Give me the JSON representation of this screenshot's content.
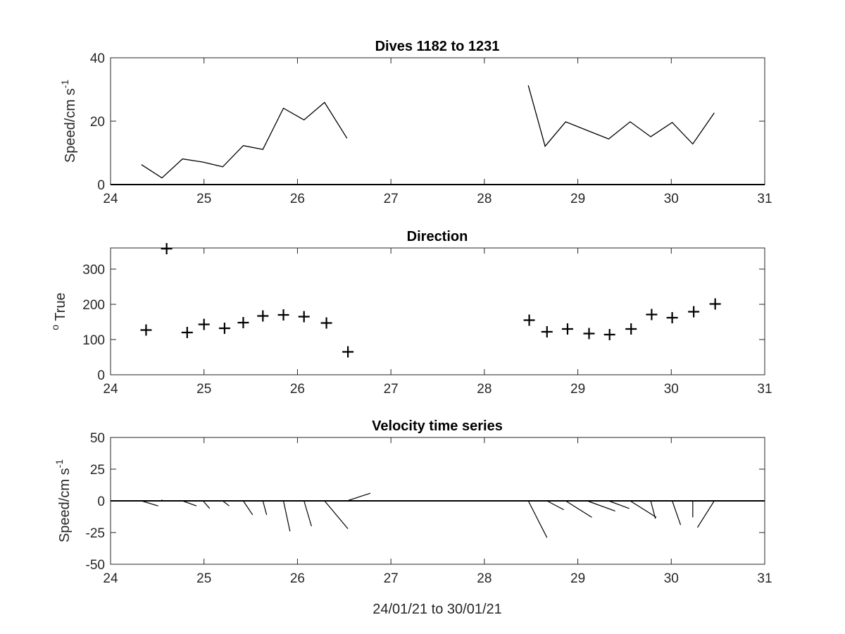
{
  "chart_data": [
    {
      "type": "line",
      "title": "Dives 1182 to 1231",
      "ylabel_main": "Speed/cm s",
      "ylabel_sup": "-1",
      "xlabel": "",
      "xlim": [
        24,
        31
      ],
      "ylim": [
        0,
        40
      ],
      "xticks": [
        24,
        25,
        26,
        27,
        28,
        29,
        30,
        31
      ],
      "yticks": [
        0,
        20,
        40
      ],
      "series": [
        {
          "x": [
            24.33,
            24.55,
            24.77,
            24.99,
            25.2,
            25.42,
            25.63,
            25.85,
            26.07,
            26.29,
            26.53
          ],
          "y": [
            6.3,
            2.1,
            8.1,
            7.1,
            5.6,
            12.3,
            11.1,
            24.1,
            20.4,
            25.9,
            14.6
          ]
        },
        {
          "x": [
            28.47,
            28.65,
            28.87,
            29.1,
            29.33,
            29.56,
            29.78,
            30.01,
            30.23,
            30.46
          ],
          "y": [
            31.3,
            12.1,
            19.8,
            17.1,
            14.4,
            19.8,
            15.1,
            19.6,
            12.8,
            22.6
          ]
        }
      ]
    },
    {
      "type": "scatter",
      "title": "Direction",
      "ylabel_sup": "o",
      "ylabel_main": " True",
      "xlabel": "",
      "xlim": [
        24,
        31
      ],
      "ylim": [
        0,
        360
      ],
      "xticks": [
        24,
        25,
        26,
        27,
        28,
        29,
        30,
        31
      ],
      "yticks": [
        0,
        100,
        200,
        300
      ],
      "marker": "+",
      "series": [
        {
          "x": [
            24.38,
            24.6,
            24.82,
            25.0,
            25.22,
            25.42,
            25.63,
            25.85,
            26.07,
            26.31,
            26.54,
            28.48,
            28.67,
            28.89,
            29.12,
            29.34,
            29.57,
            29.79,
            30.01,
            30.24,
            30.47
          ],
          "y": [
            127,
            358,
            120,
            143,
            132,
            148,
            167,
            170,
            165,
            147,
            65,
            155,
            122,
            130,
            117,
            114,
            130,
            171,
            162,
            179,
            201
          ]
        }
      ]
    },
    {
      "type": "stick",
      "title": "Velocity time series",
      "ylabel_main": "Speed/cm s",
      "ylabel_sup": "-1",
      "xlabel": "24/01/21 to 30/01/21",
      "xlim": [
        24,
        31
      ],
      "ylim": [
        -50,
        50
      ],
      "xticks": [
        24,
        25,
        26,
        27,
        28,
        29,
        30,
        31
      ],
      "yticks": [
        -50,
        -25,
        0,
        25,
        50
      ],
      "sticks": [
        {
          "x": 24.33,
          "dx": 0.18,
          "dy": -4
        },
        {
          "x": 24.55,
          "dx": 0.0,
          "dy": 1
        },
        {
          "x": 24.77,
          "dx": 0.15,
          "dy": -4
        },
        {
          "x": 24.99,
          "dx": 0.07,
          "dy": -6
        },
        {
          "x": 25.2,
          "dx": 0.07,
          "dy": -4
        },
        {
          "x": 25.42,
          "dx": 0.1,
          "dy": -11
        },
        {
          "x": 25.63,
          "dx": 0.04,
          "dy": -11
        },
        {
          "x": 25.85,
          "dx": 0.07,
          "dy": -24
        },
        {
          "x": 26.07,
          "dx": 0.08,
          "dy": -20
        },
        {
          "x": 26.29,
          "dx": 0.25,
          "dy": -22
        },
        {
          "x": 26.53,
          "dx": 0.25,
          "dy": 6
        },
        {
          "x": 28.47,
          "dx": 0.2,
          "dy": -29
        },
        {
          "x": 28.67,
          "dx": 0.18,
          "dy": -7
        },
        {
          "x": 28.87,
          "dx": 0.28,
          "dy": -13
        },
        {
          "x": 29.1,
          "dx": 0.3,
          "dy": -8
        },
        {
          "x": 29.33,
          "dx": 0.22,
          "dy": -6
        },
        {
          "x": 29.56,
          "dx": 0.28,
          "dy": -13
        },
        {
          "x": 29.78,
          "dx": 0.05,
          "dy": -14
        },
        {
          "x": 30.01,
          "dx": 0.09,
          "dy": -19
        },
        {
          "x": 30.23,
          "dx": 0.0,
          "dy": -13
        },
        {
          "x": 30.46,
          "dx": -0.18,
          "dy": -21
        }
      ]
    }
  ]
}
